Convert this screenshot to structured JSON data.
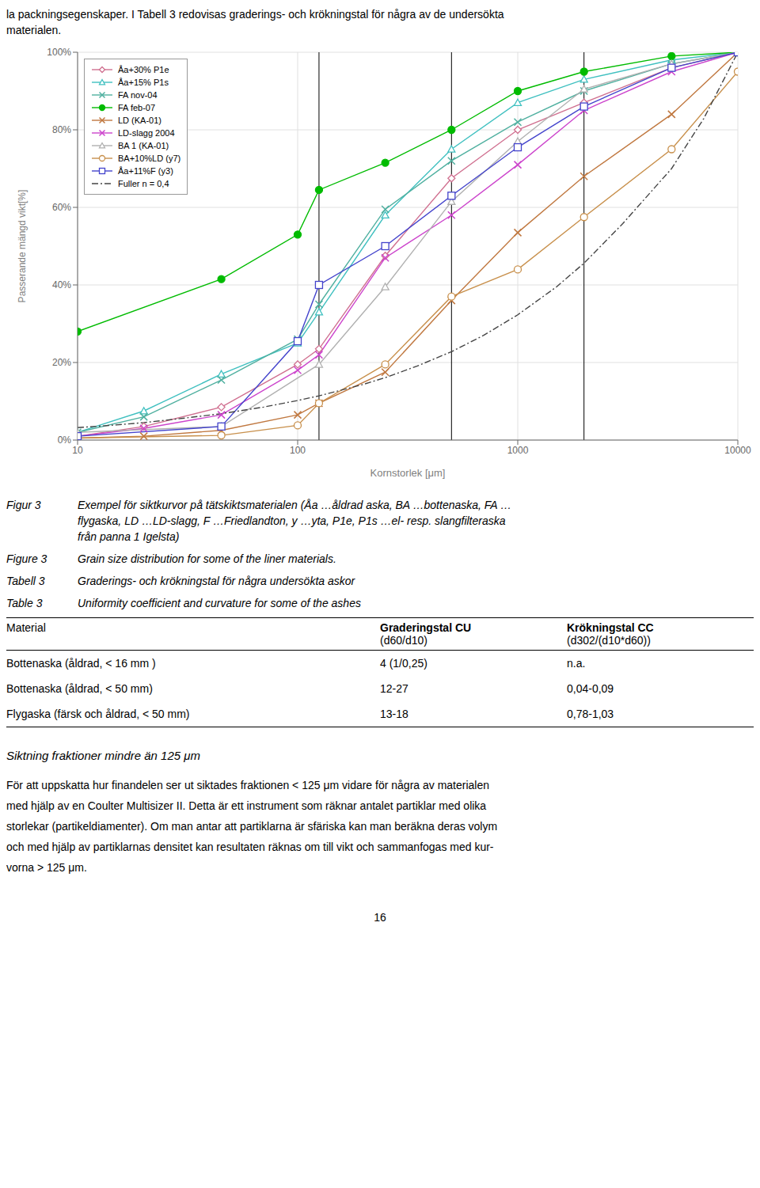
{
  "chart_data": {
    "type": "line",
    "xlabel": "Kornstorlek [μm]",
    "ylabel": "Passerande mängd vikt[%]",
    "log": "x",
    "grid": true,
    "legend": "upper left",
    "xlim": [
      10,
      10000
    ],
    "xticks": [
      10,
      100,
      1000,
      10000
    ],
    "ylim": [
      0,
      1.0
    ],
    "yticks": [
      {
        "value": 0.0,
        "label": "0%"
      },
      {
        "value": 0.2,
        "label": "20%"
      },
      {
        "value": 0.4,
        "label": "40%"
      },
      {
        "value": 0.6,
        "label": "60%"
      },
      {
        "value": 0.8,
        "label": "80%"
      },
      {
        "value": 1.0,
        "label": "100%"
      }
    ],
    "vlines": [
      125,
      500,
      2000
    ],
    "series": [
      {
        "name": "Åa+30% P1e",
        "color": "#d07090",
        "marker": "diamond_open",
        "line_style": "solid",
        "x": [
          10,
          20,
          45,
          100,
          125,
          250,
          500,
          1000,
          2000,
          5000,
          10000
        ],
        "values": [
          0.01,
          0.035,
          0.085,
          0.195,
          0.235,
          0.475,
          0.675,
          0.8,
          0.87,
          0.96,
          1.0
        ]
      },
      {
        "name": "Åa+15% P1s",
        "color": "#40c0c0",
        "marker": "triangle_open",
        "line_style": "solid",
        "x": [
          10,
          20,
          45,
          100,
          125,
          250,
          500,
          1000,
          2000,
          5000,
          10000
        ],
        "values": [
          0.02,
          0.075,
          0.17,
          0.25,
          0.33,
          0.58,
          0.75,
          0.87,
          0.93,
          0.98,
          1.0
        ]
      },
      {
        "name": "FA nov-04",
        "color": "#50b0a0",
        "marker": "x",
        "line_style": "solid",
        "x": [
          10,
          20,
          45,
          100,
          125,
          250,
          500,
          1000,
          2000,
          5000,
          10000
        ],
        "values": [
          0.02,
          0.06,
          0.155,
          0.26,
          0.35,
          0.595,
          0.72,
          0.82,
          0.9,
          0.97,
          1.0
        ]
      },
      {
        "name": "FA feb-07",
        "color": "#00bb00",
        "marker": "circle",
        "line_style": "solid",
        "x": [
          10,
          45,
          100,
          125,
          250,
          500,
          1000,
          2000,
          5000,
          10000
        ],
        "values": [
          0.28,
          0.415,
          0.53,
          0.645,
          0.715,
          0.8,
          0.9,
          0.95,
          0.99,
          1.0
        ]
      },
      {
        "name": "LD (KA-01)",
        "color": "#c07840",
        "marker": "x",
        "line_style": "solid",
        "x": [
          10,
          20,
          45,
          100,
          125,
          250,
          500,
          1000,
          2000,
          5000,
          10000
        ],
        "values": [
          0.005,
          0.01,
          0.025,
          0.065,
          0.095,
          0.175,
          0.36,
          0.535,
          0.68,
          0.84,
          1.0
        ]
      },
      {
        "name": "LD-slagg 2004",
        "color": "#cc44cc",
        "marker": "x",
        "line_style": "solid",
        "x": [
          10,
          20,
          45,
          100,
          125,
          250,
          500,
          1000,
          2000,
          5000,
          10000
        ],
        "values": [
          0.01,
          0.03,
          0.065,
          0.18,
          0.22,
          0.47,
          0.58,
          0.71,
          0.85,
          0.95,
          1.0
        ]
      },
      {
        "name": "BA 1 (KA-01)",
        "color": "#b0b0b0",
        "marker": "triangle_open",
        "line_style": "solid",
        "x": [
          10,
          45,
          125,
          250,
          500,
          1000,
          2000,
          5000,
          10000
        ],
        "values": [
          0.02,
          0.035,
          0.195,
          0.395,
          0.615,
          0.77,
          0.905,
          0.97,
          1.0
        ]
      },
      {
        "name": "BA+10%LD (y7)",
        "color": "#c8904c",
        "marker": "circle_open",
        "line_style": "solid",
        "x": [
          10,
          45,
          100,
          125,
          250,
          500,
          1000,
          2000,
          5000,
          10000
        ],
        "values": [
          0.005,
          0.012,
          0.038,
          0.095,
          0.195,
          0.37,
          0.44,
          0.575,
          0.75,
          0.95
        ]
      },
      {
        "name": "Åa+11%F (y3)",
        "color": "#4444cc",
        "marker": "square_open",
        "line_style": "solid",
        "x": [
          10,
          45,
          100,
          125,
          250,
          500,
          1000,
          2000,
          5000,
          10000
        ],
        "values": [
          0.01,
          0.035,
          0.255,
          0.4,
          0.5,
          0.63,
          0.755,
          0.86,
          0.96,
          1.0
        ]
      },
      {
        "name": "Fuller n = 0,4",
        "color": "#444444",
        "marker": "none",
        "line_style": "dashdot",
        "x": [
          10,
          15,
          20,
          30,
          45,
          70,
          100,
          125,
          200,
          250,
          350,
          500,
          700,
          1000,
          1500,
          2000,
          3000,
          5000,
          7000,
          10000
        ],
        "values": [
          0.032,
          0.039,
          0.045,
          0.056,
          0.068,
          0.085,
          0.102,
          0.114,
          0.144,
          0.161,
          0.191,
          0.228,
          0.27,
          0.323,
          0.395,
          0.456,
          0.558,
          0.7,
          0.829,
          1.0
        ]
      }
    ]
  },
  "texts": {
    "intro": [
      "la packningsegenskaper. I Tabell 3 redovisas graderings- och krökningstal för några av de undersökta",
      "materialen."
    ],
    "captions": [
      {
        "label": "Figur 3",
        "lines": [
          "Exempel för siktkurvor på tätskiktsmaterialen (Åa …åldrad aska, BA …bottenaska, FA …",
          "flygaska, LD …LD-slagg, F …Friedlandton, y …yta, P1e, P1s …el- resp. slangfilteraska",
          "från panna 1 Igelsta)"
        ]
      },
      {
        "label": "Figure 3",
        "lines": [
          "Grain size distribution for some of the liner materials."
        ]
      },
      {
        "label": "Tabell 3",
        "lines": [
          "Graderings- och krökningstal för några undersökta askor"
        ]
      },
      {
        "label": "Table 3",
        "lines": [
          "Uniformity coefficient and curvature for some of the ashes"
        ]
      }
    ],
    "table": {
      "header": [
        "Material",
        "Graderingstal CU\n(d60/d10)",
        "Krökningstal CC\n(d302/(d10*d60))"
      ],
      "rows": [
        [
          "Bottenaska (åldrad, < 16 mm )",
          "4 (1/0,25)",
          "n.a."
        ],
        [
          "Bottenaska (åldrad, < 50 mm)",
          "12-27",
          "0,04-0,09"
        ],
        [
          "Flygaska (färsk och åldrad, < 50 mm)",
          "13-18",
          "0,78-1,03"
        ]
      ]
    },
    "heading": "Siktning fraktioner mindre än 125 μm",
    "paragraphs": [
      "För att uppskatta hur finandelen ser ut siktades fraktionen < 125 μm vidare för några av materialen",
      "med hjälp av en Coulter Multisizer II. Detta är ett instrument som räknar antalet partiklar med olika",
      "storlekar (partikeldiamenter). Om man antar att partiklarna är sfäriska kan man beräkna deras volym",
      "och med hjälp av partiklarnas densitet kan resultaten räknas om till vikt och sammanfogas med kur-",
      "vorna > 125 μm."
    ],
    "page_number": "16"
  }
}
